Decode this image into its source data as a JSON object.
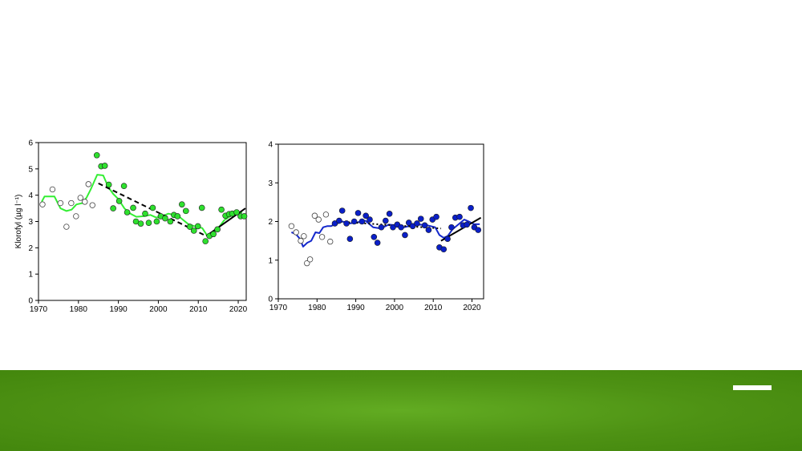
{
  "slide": {
    "footer_color": "#52991a"
  },
  "chart_data": [
    {
      "type": "scatter",
      "title": "",
      "xlabel": "",
      "ylabel": "Klorofyl (µg l⁻¹)",
      "xlim": [
        1970,
        2022
      ],
      "ylim": [
        0,
        6
      ],
      "xticks": [
        1970,
        1980,
        1990,
        2000,
        2010,
        2020
      ],
      "yticks": [
        0,
        1,
        2,
        3,
        4,
        5,
        6
      ],
      "grid": false,
      "legend": "none",
      "colors": {
        "filled": "#2ee02e",
        "line": "#33ee33",
        "trend": "#000000"
      },
      "open_points": [
        [
          1971,
          3.65
        ],
        [
          1973.5,
          4.22
        ],
        [
          1975.5,
          3.7
        ],
        [
          1977,
          2.8
        ],
        [
          1978.2,
          3.7
        ],
        [
          1979.4,
          3.2
        ],
        [
          1980.5,
          3.9
        ],
        [
          1981.6,
          3.75
        ],
        [
          1982.5,
          4.42
        ],
        [
          1983.5,
          3.62
        ]
      ],
      "filled_points": [
        [
          1984.6,
          5.52
        ],
        [
          1985.7,
          5.1
        ],
        [
          1986.6,
          5.12
        ],
        [
          1987.6,
          4.4
        ],
        [
          1988.7,
          3.5
        ],
        [
          1990.2,
          3.78
        ],
        [
          1991.4,
          4.35
        ],
        [
          1992.2,
          3.35
        ],
        [
          1993.7,
          3.52
        ],
        [
          1994.4,
          3.0
        ],
        [
          1995.6,
          2.92
        ],
        [
          1996.7,
          3.3
        ],
        [
          1997.6,
          2.95
        ],
        [
          1998.6,
          3.52
        ],
        [
          1999.6,
          3.0
        ],
        [
          2000.6,
          3.2
        ],
        [
          2001.7,
          3.12
        ],
        [
          2003,
          3.0
        ],
        [
          2003.9,
          3.25
        ],
        [
          2004.8,
          3.2
        ],
        [
          2005.9,
          3.65
        ],
        [
          2006.9,
          3.4
        ],
        [
          2007.9,
          2.8
        ],
        [
          2008.9,
          2.65
        ],
        [
          2009.9,
          2.82
        ],
        [
          2010.9,
          3.52
        ],
        [
          2011.8,
          2.25
        ],
        [
          2012.8,
          2.45
        ],
        [
          2013.8,
          2.52
        ],
        [
          2014.8,
          2.7
        ],
        [
          2015.8,
          3.45
        ],
        [
          2016.8,
          3.22
        ],
        [
          2017.7,
          3.28
        ],
        [
          2018.5,
          3.3
        ],
        [
          2019.6,
          3.35
        ],
        [
          2020.6,
          3.2
        ],
        [
          2021.5,
          3.2
        ]
      ],
      "smooth_line": [
        [
          1970.8,
          3.75
        ],
        [
          1971.5,
          3.95
        ],
        [
          1974,
          3.95
        ],
        [
          1975.5,
          3.5
        ],
        [
          1977,
          3.4
        ],
        [
          1978.3,
          3.45
        ],
        [
          1979.5,
          3.65
        ],
        [
          1981,
          3.7
        ],
        [
          1982,
          3.9
        ],
        [
          1983,
          4.2
        ],
        [
          1984.7,
          4.78
        ],
        [
          1986.2,
          4.75
        ],
        [
          1987.5,
          4.3
        ],
        [
          1988.7,
          4.05
        ],
        [
          1990,
          3.85
        ],
        [
          1991.5,
          3.5
        ],
        [
          1993,
          3.3
        ],
        [
          1994.5,
          3.18
        ],
        [
          1996.4,
          3.2
        ],
        [
          1998,
          3.25
        ],
        [
          1999.5,
          3.15
        ],
        [
          2001,
          3.2
        ],
        [
          2002.5,
          3.3
        ],
        [
          2004,
          3.25
        ],
        [
          2005.5,
          3.15
        ],
        [
          2007.5,
          2.9
        ],
        [
          2009.5,
          2.8
        ],
        [
          2011,
          2.75
        ],
        [
          2012.5,
          2.4
        ],
        [
          2013.5,
          2.55
        ],
        [
          2015,
          2.75
        ],
        [
          2016.5,
          3.05
        ],
        [
          2018,
          3.2
        ],
        [
          2019.5,
          3.35
        ],
        [
          2021,
          3.35
        ]
      ],
      "trend_dashed": [
        [
          1985,
          4.45
        ],
        [
          2012,
          2.45
        ]
      ],
      "trend_solid": [
        [
          2012,
          2.45
        ],
        [
          2021.8,
          3.5
        ]
      ]
    },
    {
      "type": "scatter",
      "title": "",
      "xlabel": "",
      "ylabel": "",
      "xlim": [
        1970,
        2023
      ],
      "ylim": [
        0,
        4
      ],
      "xticks": [
        1970,
        1980,
        1990,
        2000,
        2010,
        2020
      ],
      "yticks": [
        0,
        1,
        2,
        3,
        4
      ],
      "grid": false,
      "legend": "none",
      "colors": {
        "filled": "#0a1fc8",
        "line": "#1428cc",
        "trend": "#000000"
      },
      "open_points": [
        [
          1973.4,
          1.88
        ],
        [
          1974.6,
          1.72
        ],
        [
          1975.8,
          1.5
        ],
        [
          1976.6,
          1.62
        ],
        [
          1977.4,
          0.92
        ],
        [
          1978.2,
          1.02
        ],
        [
          1979.4,
          2.15
        ],
        [
          1980.4,
          2.05
        ],
        [
          1981.3,
          1.6
        ],
        [
          1982.3,
          2.18
        ],
        [
          1983.4,
          1.48
        ]
      ],
      "filled_points": [
        [
          1984.6,
          1.95
        ],
        [
          1985.7,
          2.02
        ],
        [
          1986.5,
          2.28
        ],
        [
          1987.6,
          1.95
        ],
        [
          1988.5,
          1.55
        ],
        [
          1989.6,
          2.0
        ],
        [
          1990.6,
          2.22
        ],
        [
          1991.6,
          2.0
        ],
        [
          1992.6,
          2.15
        ],
        [
          1993.6,
          2.05
        ],
        [
          1994.7,
          1.6
        ],
        [
          1995.6,
          1.45
        ],
        [
          1996.6,
          1.85
        ],
        [
          1997.7,
          2.02
        ],
        [
          1998.7,
          2.2
        ],
        [
          1999.6,
          1.85
        ],
        [
          2000.7,
          1.92
        ],
        [
          2001.7,
          1.85
        ],
        [
          2002.7,
          1.65
        ],
        [
          2003.7,
          1.97
        ],
        [
          2004.7,
          1.88
        ],
        [
          2005.8,
          1.95
        ],
        [
          2006.8,
          2.07
        ],
        [
          2007.8,
          1.9
        ],
        [
          2008.8,
          1.78
        ],
        [
          2009.8,
          2.05
        ],
        [
          2010.8,
          2.12
        ],
        [
          2011.6,
          1.33
        ],
        [
          2012.7,
          1.28
        ],
        [
          2013.7,
          1.55
        ],
        [
          2014.7,
          1.85
        ],
        [
          2015.7,
          2.1
        ],
        [
          2016.8,
          2.12
        ],
        [
          2017.7,
          1.9
        ],
        [
          2018.7,
          1.92
        ],
        [
          2019.7,
          2.35
        ],
        [
          2020.6,
          1.85
        ],
        [
          2021.6,
          1.78
        ]
      ],
      "smooth_line": [
        [
          1973.4,
          1.72
        ],
        [
          1974.5,
          1.68
        ],
        [
          1975.6,
          1.55
        ],
        [
          1976.4,
          1.35
        ],
        [
          1977.5,
          1.45
        ],
        [
          1978.5,
          1.5
        ],
        [
          1979.6,
          1.72
        ],
        [
          1980.6,
          1.7
        ],
        [
          1981.6,
          1.85
        ],
        [
          1982.6,
          1.88
        ],
        [
          1983.6,
          1.88
        ],
        [
          1984.6,
          1.93
        ],
        [
          1986.5,
          2.0
        ],
        [
          1988.5,
          1.95
        ],
        [
          1990.5,
          1.98
        ],
        [
          1992.5,
          2.02
        ],
        [
          1994.5,
          1.85
        ],
        [
          1996.5,
          1.82
        ],
        [
          1998.5,
          1.92
        ],
        [
          2000.5,
          1.9
        ],
        [
          2002.5,
          1.85
        ],
        [
          2004.5,
          1.9
        ],
        [
          2006.5,
          1.92
        ],
        [
          2008.5,
          1.9
        ],
        [
          2010.5,
          1.85
        ],
        [
          2011.6,
          1.65
        ],
        [
          2012.7,
          1.58
        ],
        [
          2013.7,
          1.62
        ],
        [
          2015,
          1.8
        ],
        [
          2016.8,
          1.95
        ],
        [
          2018,
          2.05
        ],
        [
          2019.2,
          2.0
        ],
        [
          2020.5,
          1.93
        ],
        [
          2022,
          1.93
        ]
      ],
      "trend_dotted": [
        [
          1985,
          2.0
        ],
        [
          2012,
          1.82
        ]
      ],
      "trend_solid": [
        [
          2012,
          1.5
        ],
        [
          2022.3,
          2.1
        ]
      ]
    }
  ]
}
